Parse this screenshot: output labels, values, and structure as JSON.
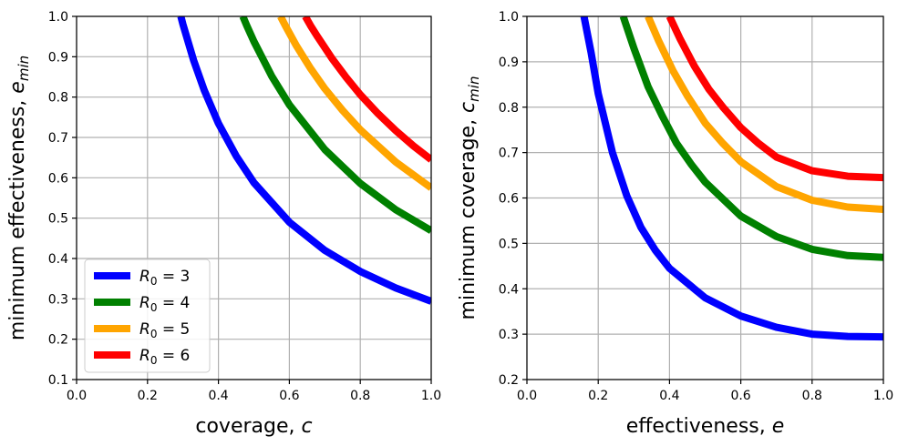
{
  "chart_data": [
    {
      "type": "line",
      "xlabel": "coverage, c",
      "xlabel_parts": {
        "text": "coverage, ",
        "var": "c"
      },
      "ylabel": "minimum effectiveness, e_min",
      "ylabel_parts": {
        "text": "minimum effectiveness, ",
        "var": "e",
        "sub": "min"
      },
      "xlim": [
        0.0,
        1.0
      ],
      "ylim": [
        0.1,
        1.0
      ],
      "xticks": [
        "0.0",
        "0.2",
        "0.4",
        "0.6",
        "0.8",
        "1.0"
      ],
      "yticks": [
        "0.1",
        "0.2",
        "0.3",
        "0.4",
        "0.5",
        "0.6",
        "0.7",
        "0.8",
        "0.9",
        "1.0"
      ],
      "grid": true,
      "legend": "lower-left",
      "series": [
        {
          "name": "R0 = 3",
          "R0": 3,
          "color": "#0000ff",
          "x": [
            0.294,
            0.3,
            0.33,
            0.36,
            0.4,
            0.45,
            0.5,
            0.6,
            0.7,
            0.8,
            0.9,
            1.0
          ],
          "y": [
            1.0,
            0.98,
            0.891,
            0.817,
            0.735,
            0.654,
            0.588,
            0.49,
            0.42,
            0.368,
            0.327,
            0.294
          ]
        },
        {
          "name": "R0 = 4",
          "R0": 4,
          "color": "#008000",
          "x": [
            0.469,
            0.48,
            0.5,
            0.55,
            0.6,
            0.7,
            0.8,
            0.9,
            1.0
          ],
          "y": [
            1.0,
            0.977,
            0.938,
            0.852,
            0.781,
            0.67,
            0.586,
            0.521,
            0.469
          ]
        },
        {
          "name": "R0 = 5",
          "R0": 5,
          "color": "#ffa500",
          "x": [
            0.575,
            0.59,
            0.62,
            0.66,
            0.7,
            0.75,
            0.8,
            0.9,
            1.0
          ],
          "y": [
            1.0,
            0.975,
            0.927,
            0.871,
            0.821,
            0.767,
            0.719,
            0.639,
            0.575
          ]
        },
        {
          "name": "R0 = 6",
          "R0": 6,
          "color": "#ff0000",
          "x": [
            0.645,
            0.66,
            0.68,
            0.72,
            0.76,
            0.8,
            0.85,
            0.9,
            0.95,
            1.0
          ],
          "y": [
            1.0,
            0.977,
            0.949,
            0.896,
            0.849,
            0.806,
            0.759,
            0.717,
            0.679,
            0.645
          ]
        }
      ]
    },
    {
      "type": "line",
      "xlabel": "effectiveness, e",
      "xlabel_parts": {
        "text": "effectiveness, ",
        "var": "e"
      },
      "ylabel": "minimum coverage, c_min",
      "ylabel_parts": {
        "text": "minimum coverage, ",
        "var": "c",
        "sub": "min"
      },
      "xlim": [
        0.0,
        1.0
      ],
      "ylim": [
        0.2,
        1.0
      ],
      "xticks": [
        "0.0",
        "0.2",
        "0.4",
        "0.6",
        "0.8",
        "1.0"
      ],
      "yticks": [
        "0.2",
        "0.3",
        "0.4",
        "0.5",
        "0.6",
        "0.7",
        "0.8",
        "0.9",
        "1.0"
      ],
      "grid": true,
      "legend": "none",
      "series": [
        {
          "name": "R0 = 3",
          "R0": 3,
          "color": "#0000ff",
          "x": [
            0.16,
            0.18,
            0.2,
            0.24,
            0.28,
            0.32,
            0.36,
            0.4,
            0.5,
            0.6,
            0.7,
            0.8,
            0.9,
            1.0
          ],
          "y": [
            1.0,
            0.92,
            0.83,
            0.7,
            0.605,
            0.535,
            0.485,
            0.445,
            0.38,
            0.34,
            0.315,
            0.3,
            0.295,
            0.294
          ]
        },
        {
          "name": "R0 = 4",
          "R0": 4,
          "color": "#008000",
          "x": [
            0.27,
            0.3,
            0.34,
            0.38,
            0.42,
            0.46,
            0.5,
            0.6,
            0.7,
            0.8,
            0.9,
            1.0
          ],
          "y": [
            1.0,
            0.93,
            0.845,
            0.78,
            0.72,
            0.675,
            0.635,
            0.56,
            0.515,
            0.487,
            0.473,
            0.469
          ]
        },
        {
          "name": "R0 = 5",
          "R0": 5,
          "color": "#ffa500",
          "x": [
            0.34,
            0.37,
            0.41,
            0.45,
            0.5,
            0.55,
            0.6,
            0.7,
            0.8,
            0.9,
            1.0
          ],
          "y": [
            1.0,
            0.945,
            0.88,
            0.825,
            0.765,
            0.72,
            0.68,
            0.625,
            0.595,
            0.58,
            0.575
          ]
        },
        {
          "name": "R0 = 6",
          "R0": 6,
          "color": "#ff0000",
          "x": [
            0.4,
            0.43,
            0.47,
            0.51,
            0.55,
            0.6,
            0.65,
            0.7,
            0.8,
            0.9,
            1.0
          ],
          "y": [
            1.0,
            0.95,
            0.89,
            0.84,
            0.8,
            0.755,
            0.72,
            0.69,
            0.66,
            0.648,
            0.645
          ]
        }
      ]
    }
  ]
}
